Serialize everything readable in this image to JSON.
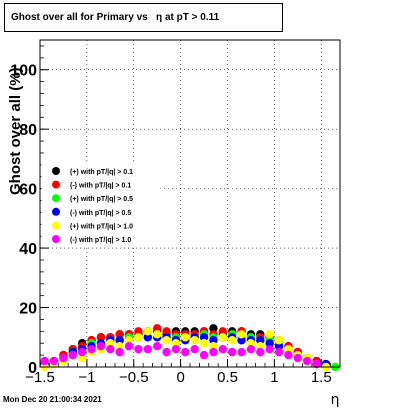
{
  "title": "Ghost over all for Primary vs   η at pT > 0.11",
  "footer": "Mon Dec 20 21:00:34 2021",
  "chart_data": {
    "type": "scatter",
    "xlabel": "η",
    "ylabel": "Ghost  over all (%)",
    "xlim": [
      -1.5,
      1.7
    ],
    "ylim": [
      0,
      110
    ],
    "x_ticks": [
      -1.5,
      -1,
      -0.5,
      0,
      0.5,
      1,
      1.5
    ],
    "x_tick_labels": [
      "−1.5",
      "−1",
      "−0.5",
      "0",
      "0.5",
      "1",
      "1.5"
    ],
    "y_ticks": [
      0,
      20,
      40,
      60,
      80,
      100
    ],
    "y_tick_labels": [
      "0",
      "20",
      "40",
      "60",
      "80",
      "100"
    ],
    "grid": true,
    "legend_position": "left-middle",
    "series": [
      {
        "name": "(+) with pT/|q| > 0.1",
        "color": "#000000",
        "x": [
          -1.45,
          -1.35,
          -1.25,
          -1.15,
          -1.05,
          -0.95,
          -0.85,
          -0.75,
          -0.65,
          -0.55,
          -0.45,
          -0.35,
          -0.25,
          -0.15,
          -0.05,
          0.05,
          0.15,
          0.25,
          0.35,
          0.45,
          0.55,
          0.65,
          0.75,
          0.85,
          0.95,
          1.05,
          1.15,
          1.25,
          1.35,
          1.45,
          1.55
        ],
        "y": [
          1,
          2,
          4,
          6,
          8,
          9,
          10,
          10,
          11,
          11,
          11,
          12,
          12,
          11,
          12,
          12,
          12,
          12,
          13,
          11,
          12,
          12,
          11,
          11,
          10,
          9,
          7,
          5,
          3,
          2,
          1
        ]
      },
      {
        "name": "(-) with pT/|q| > 0.1",
        "color": "#ff0000",
        "x": [
          -1.45,
          -1.35,
          -1.25,
          -1.15,
          -1.05,
          -0.95,
          -0.85,
          -0.75,
          -0.65,
          -0.55,
          -0.45,
          -0.35,
          -0.25,
          -0.15,
          -0.05,
          0.05,
          0.15,
          0.25,
          0.35,
          0.45,
          0.55,
          0.65,
          0.75,
          0.85,
          0.95,
          1.05,
          1.15,
          1.25,
          1.35,
          1.45,
          1.55
        ],
        "y": [
          1,
          2,
          4,
          6,
          7,
          9,
          10,
          10,
          11,
          11,
          12,
          12,
          13,
          12,
          11,
          11,
          11,
          12,
          11,
          12,
          11,
          12,
          10,
          10,
          10,
          8,
          7,
          5,
          3,
          2,
          1
        ]
      },
      {
        "name": "(+) with pT/|q| > 0.5",
        "color": "#00ff00",
        "x": [
          -1.45,
          -1.35,
          -1.25,
          -1.15,
          -1.05,
          -0.95,
          -0.85,
          -0.75,
          -0.65,
          -0.55,
          -0.45,
          -0.35,
          -0.25,
          -0.15,
          -0.05,
          0.05,
          0.15,
          0.25,
          0.35,
          0.45,
          0.55,
          0.65,
          0.75,
          0.85,
          0.95,
          1.05,
          1.15,
          1.25,
          1.35,
          1.45,
          1.55,
          1.65
        ],
        "y": [
          1,
          2,
          3,
          5,
          6,
          8,
          8,
          9,
          9,
          10,
          10,
          10,
          11,
          10,
          10,
          10,
          10,
          11,
          10,
          10,
          11,
          10,
          10,
          9,
          9,
          8,
          6,
          4,
          3,
          1,
          1,
          0
        ]
      },
      {
        "name": "(-) with pT/|q| > 0.5",
        "color": "#0000ff",
        "x": [
          -1.45,
          -1.35,
          -1.25,
          -1.15,
          -1.05,
          -0.95,
          -0.85,
          -0.75,
          -0.65,
          -0.55,
          -0.45,
          -0.35,
          -0.25,
          -0.15,
          -0.05,
          0.05,
          0.15,
          0.25,
          0.35,
          0.45,
          0.55,
          0.65,
          0.75,
          0.85,
          0.95,
          1.05,
          1.15,
          1.25,
          1.35,
          1.45,
          1.55
        ],
        "y": [
          1,
          2,
          3,
          5,
          6,
          7,
          8,
          9,
          9,
          9,
          10,
          10,
          10,
          10,
          9,
          9,
          10,
          10,
          9,
          10,
          10,
          9,
          9,
          9,
          8,
          7,
          6,
          4,
          3,
          1,
          1
        ]
      },
      {
        "name": "(+) with pT/|q| > 1.0",
        "color": "#ffff00",
        "x": [
          -1.45,
          -1.35,
          -1.25,
          -1.15,
          -1.05,
          -0.95,
          -0.85,
          -0.75,
          -0.65,
          -0.55,
          -0.45,
          -0.35,
          -0.25,
          -0.15,
          -0.05,
          0.05,
          0.15,
          0.25,
          0.35,
          0.45,
          0.55,
          0.65,
          0.75,
          0.85,
          0.95,
          1.05,
          1.15,
          1.25,
          1.35,
          1.45,
          1.55
        ],
        "y": [
          0,
          1,
          2,
          4,
          3,
          5,
          6,
          8,
          7,
          9,
          10,
          12,
          11,
          9,
          8,
          10,
          9,
          8,
          7,
          10,
          9,
          11,
          8,
          7,
          11,
          9,
          6,
          4,
          3,
          1,
          0
        ]
      },
      {
        "name": "(-) with pT/|q| > 1.0",
        "color": "#ff00ff",
        "x": [
          -1.45,
          -1.35,
          -1.25,
          -1.15,
          -1.05,
          -0.95,
          -0.85,
          -0.75,
          -0.65,
          -0.55,
          -0.45,
          -0.35,
          -0.25,
          -0.15,
          -0.05,
          0.05,
          0.15,
          0.25,
          0.35,
          0.45,
          0.55,
          0.65,
          0.75,
          0.85,
          0.95,
          1.05,
          1.15,
          1.25,
          1.35,
          1.45
        ],
        "y": [
          2,
          2,
          3,
          4,
          5,
          6,
          7,
          6,
          5,
          7,
          6,
          6,
          7,
          5,
          6,
          5,
          6,
          4,
          5,
          6,
          5,
          5,
          6,
          5,
          6,
          5,
          4,
          3,
          2,
          1
        ]
      }
    ]
  }
}
